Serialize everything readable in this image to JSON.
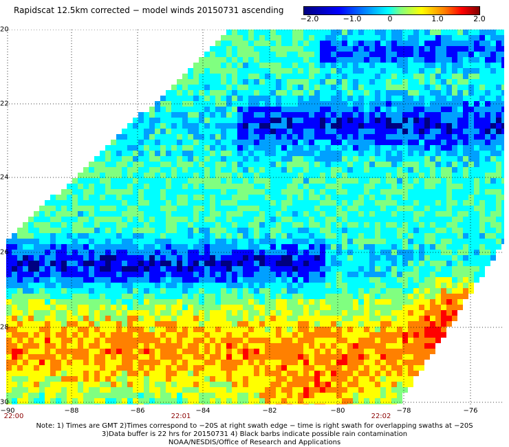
{
  "title": "Rapidscat 12.5km corrected − model winds 20150731 ascending",
  "colorbar": {
    "ticks": [
      "−2.0",
      "−1.0",
      "0",
      "1.0",
      "2.0"
    ],
    "range": [
      -2.0,
      2.0
    ],
    "colors": [
      "#000080",
      "#0000ff",
      "#00a0ff",
      "#00ffff",
      "#80ff80",
      "#ffff00",
      "#ff8000",
      "#ff0000",
      "#800000"
    ]
  },
  "axes": {
    "lat_labels": [
      "20",
      "22",
      "24",
      "26",
      "28",
      "30"
    ],
    "lon_labels": [
      "−90",
      "−88",
      "−86",
      "−84",
      "−82",
      "−80",
      "−78",
      "−76"
    ],
    "time_labels": [
      "22:00",
      "22:01",
      "22:02"
    ]
  },
  "notes": {
    "line1": "Note: 1) Times are GMT 2)Times correspond to −20S at right swath edge − time is right swath for overlapping swaths at −20S",
    "line2": "3)Data buffer is 22 hrs for 20150731 4) Black barbs indicate possible rain contamination",
    "line3": "NOAA/NESDIS/Office of Research and Applications"
  }
}
